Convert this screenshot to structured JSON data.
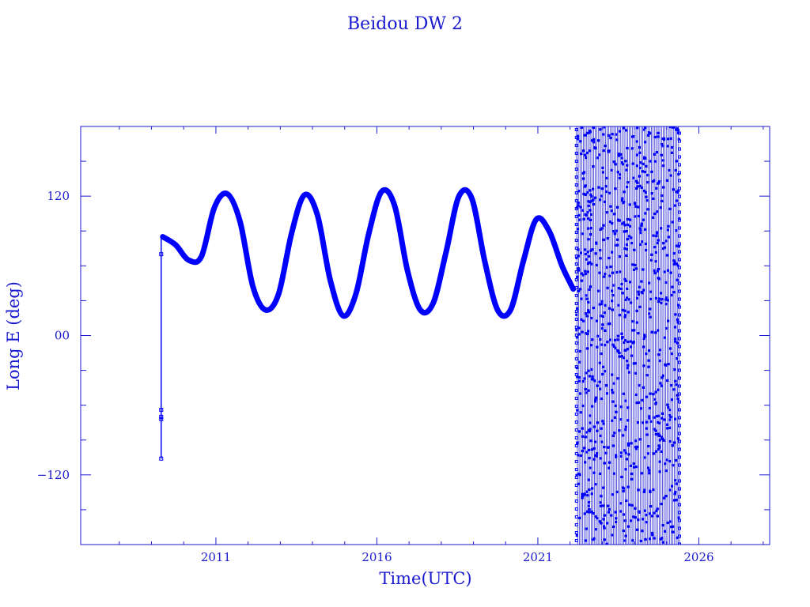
{
  "chart_data": {
    "type": "scatter",
    "title": "Beidou DW 2",
    "xlabel": "Time(UTC)",
    "ylabel": "Long E (deg)",
    "xlim": [
      2006.8,
      2028.2
    ],
    "ylim": [
      -180,
      180
    ],
    "x_ticks": [
      2011,
      2016,
      2021,
      2026
    ],
    "x_tick_labels": [
      "2011",
      "2016",
      "2021",
      "2026"
    ],
    "y_ticks": [
      -120,
      0,
      120
    ],
    "y_tick_labels": [
      "−120",
      "00",
      "120"
    ],
    "grid": false,
    "legend": "none",
    "color": "#1a1ad0",
    "mark_color": "#0000ff",
    "series": [
      {
        "x": [
          2009.35,
          2009.75,
          2010.15,
          2010.55,
          2010.95,
          2011.35,
          2011.75,
          2012.15,
          2012.55,
          2012.95,
          2013.35,
          2013.75,
          2014.15,
          2014.55,
          2014.95,
          2015.35,
          2015.75,
          2016.15,
          2016.55,
          2016.95,
          2017.35,
          2017.75,
          2018.15,
          2018.55,
          2018.95,
          2019.35,
          2019.75,
          2020.15,
          2020.55,
          2020.95,
          2021.35,
          2021.75,
          2022.1
        ],
        "y": [
          85,
          78,
          65,
          68,
          110,
          122,
          98,
          42,
          22,
          36,
          88,
          121,
          104,
          48,
          17,
          36,
          88,
          124,
          112,
          56,
          22,
          28,
          72,
          120,
          118,
          64,
          22,
          22,
          64,
          100,
          90,
          60,
          40
        ],
        "note": "smooth oscillation between about 18 and 125 deg longitude"
      }
    ],
    "early_drift_points": {
      "x": [
        2009.3,
        2009.3,
        2009.3,
        2009.3,
        2009.3
      ],
      "y": [
        -106,
        -64,
        -72,
        -70,
        70
      ]
    },
    "drift_band": {
      "x_range": [
        2022.2,
        2025.4
      ],
      "y_range": [
        -180,
        180
      ],
      "description": "dense wrapping drift through all longitudes"
    }
  }
}
